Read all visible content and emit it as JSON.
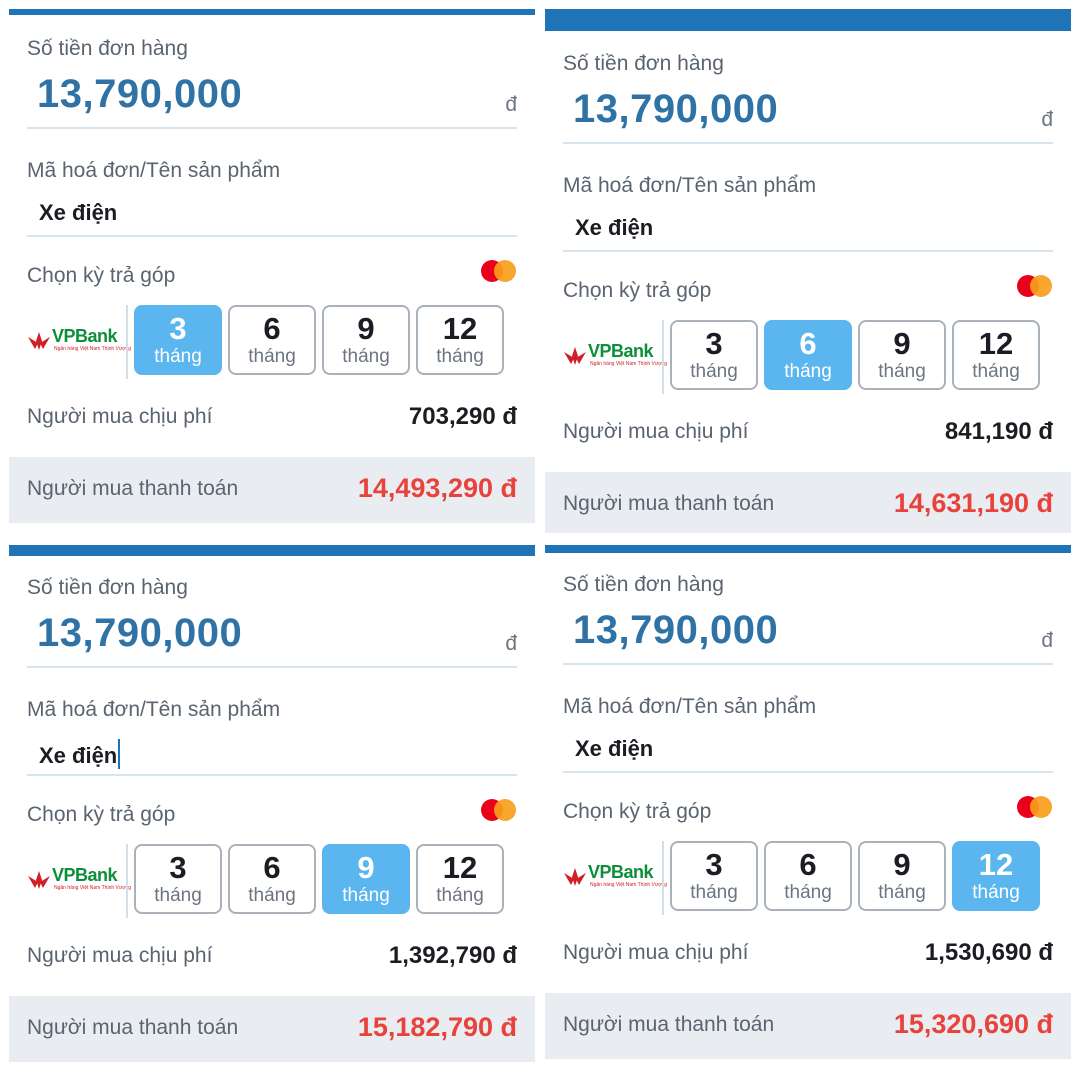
{
  "order_amount_label": "Số tiền đơn hàng",
  "product_label": "Mã hoá đơn/Tên sản phẩm",
  "installment_label": "Chọn kỳ trả góp",
  "fee_label": "Người mua chịu phí",
  "total_label": "Người mua thanh toán",
  "bank": {
    "name": "VPBank",
    "tagline": "Ngân hàng Việt Nam Thịnh Vượng"
  },
  "month_unit": "tháng",
  "colors": {
    "accent": "#1f73b7",
    "selected": "#5bb6ef",
    "total": "#e8423b",
    "amount": "#2f73a6"
  },
  "icons": {
    "card": "mastercard-icon",
    "bank_logo": "vpbank-logo-icon"
  },
  "panels": [
    {
      "amount": "13,790,000",
      "currency": "đ",
      "product": "Xe điện",
      "terms": [
        "3",
        "6",
        "9",
        "12"
      ],
      "selected_term": "3",
      "fee": "703,290 đ",
      "total": "14,493,290 đ"
    },
    {
      "amount": "13,790,000",
      "currency": "đ",
      "product": "Xe điện",
      "terms": [
        "3",
        "6",
        "9",
        "12"
      ],
      "selected_term": "6",
      "fee": "841,190 đ",
      "total": "14,631,190 đ"
    },
    {
      "amount": "13,790,000",
      "currency": "đ",
      "product": "Xe điện",
      "terms": [
        "3",
        "6",
        "9",
        "12"
      ],
      "selected_term": "9",
      "fee": "1,392,790 đ",
      "total": "15,182,790 đ"
    },
    {
      "amount": "13,790,000",
      "currency": "đ",
      "product": "Xe điện",
      "terms": [
        "3",
        "6",
        "9",
        "12"
      ],
      "selected_term": "12",
      "fee": "1,530,690 đ",
      "total": "15,320,690 đ"
    }
  ]
}
